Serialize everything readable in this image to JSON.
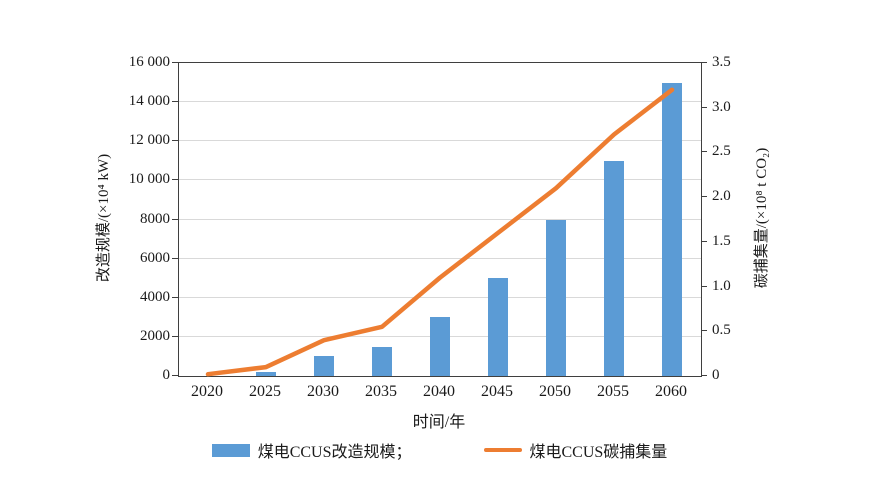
{
  "figure": {
    "x_axis_title": "时间/年",
    "left_axis_title": "改造规模/(×10⁴ kW)",
    "right_axis_title": "碳捕集量/(×10⁸ t CO₂)"
  },
  "legend": {
    "bar_label": "煤电CCUS改造规模；",
    "line_label": "煤电CCUS碳捕集量"
  },
  "colors": {
    "bar": "#5B9BD5",
    "line": "#ED7D31",
    "grid": "#d9d9d9",
    "axis": "#3f3f3f"
  },
  "chart_data": {
    "type": "bar",
    "subtype": "combo-bar-line",
    "categories": [
      "2020",
      "2025",
      "2030",
      "2035",
      "2040",
      "2045",
      "2050",
      "2055",
      "2060"
    ],
    "series": [
      {
        "name": "煤电CCUS改造规模",
        "type": "bar",
        "axis": "left",
        "color": "#5B9BD5",
        "values": [
          0,
          200,
          1000,
          1500,
          3000,
          5000,
          8000,
          11000,
          15000
        ]
      },
      {
        "name": "煤电CCUS碳捕集量",
        "type": "line",
        "axis": "right",
        "color": "#ED7D31",
        "values": [
          0.02,
          0.1,
          0.4,
          0.55,
          1.1,
          1.6,
          2.1,
          2.7,
          3.2
        ]
      }
    ],
    "title": "",
    "xlabel": "时间/年",
    "left_axis": {
      "label": "改造规模/(×10⁴ kW)",
      "min": 0,
      "max": 16000,
      "step": 2000,
      "tick_labels": [
        "0",
        "2000",
        "4000",
        "6000",
        "8000",
        "10 000",
        "12 000",
        "14 000",
        "16 000"
      ]
    },
    "right_axis": {
      "label": "碳捕集量/(×10⁸ t CO₂)",
      "min": 0,
      "max": 3.5,
      "step": 0.5,
      "tick_labels": [
        "0",
        "0.5",
        "1.0",
        "1.5",
        "2.0",
        "2.5",
        "3.0",
        "3.5"
      ]
    },
    "grid": true,
    "legend_position": "bottom"
  }
}
